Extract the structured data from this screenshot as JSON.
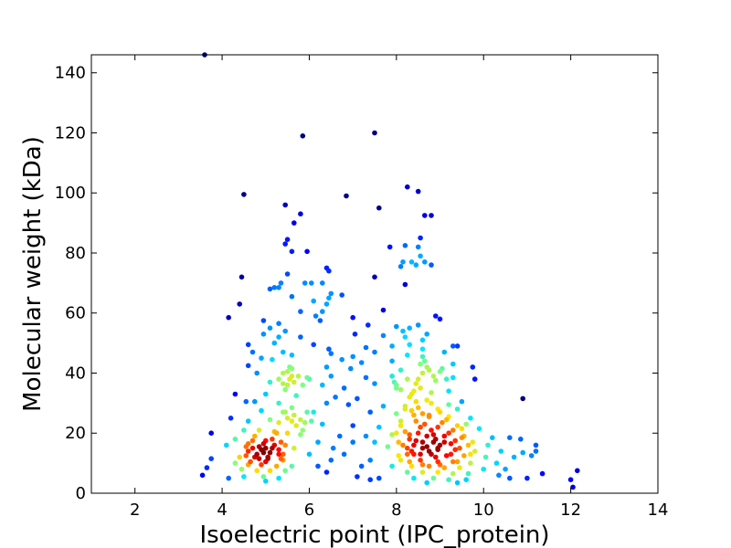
{
  "chart_data": {
    "type": "scatter",
    "title": "",
    "xlabel": "Isoelectric point (IPC_protein)",
    "ylabel": "Molecular weight (kDa)",
    "xlim": [
      1,
      14
    ],
    "ylim": [
      0,
      146
    ],
    "xticks": [
      2,
      4,
      6,
      8,
      10,
      12,
      14
    ],
    "yticks": [
      0,
      20,
      40,
      60,
      80,
      100,
      120,
      140
    ],
    "grid": false,
    "legend": "none",
    "color_by": "point density (jet colormap)",
    "colormap": [
      "#00007f",
      "#0000ff",
      "#0080ff",
      "#00e5ff",
      "#80ff80",
      "#ffe500",
      "#ff8000",
      "#ff0000",
      "#7f0000"
    ],
    "points": [
      [
        3.6,
        146
      ],
      [
        5.85,
        119
      ],
      [
        7.5,
        120
      ],
      [
        4.5,
        99.5
      ],
      [
        6.85,
        99
      ],
      [
        8.25,
        102
      ],
      [
        8.5,
        100.5
      ],
      [
        5.45,
        96
      ],
      [
        7.6,
        95
      ],
      [
        5.8,
        93
      ],
      [
        8.65,
        92.5
      ],
      [
        8.8,
        92.5
      ],
      [
        5.65,
        90
      ],
      [
        8.55,
        85
      ],
      [
        5.5,
        84.5
      ],
      [
        5.45,
        83
      ],
      [
        7.85,
        82
      ],
      [
        8.2,
        82.5
      ],
      [
        8.5,
        82
      ],
      [
        5.6,
        80.5
      ],
      [
        5.95,
        80.5
      ],
      [
        8.55,
        79
      ],
      [
        8.65,
        77
      ],
      [
        8.15,
        77
      ],
      [
        8.35,
        77
      ],
      [
        8.8,
        76
      ],
      [
        8.1,
        75.5
      ],
      [
        8.45,
        76
      ],
      [
        6.4,
        75
      ],
      [
        6.45,
        74
      ],
      [
        4.45,
        72
      ],
      [
        5.5,
        73
      ],
      [
        7.5,
        72
      ],
      [
        5.35,
        70
      ],
      [
        5.9,
        70
      ],
      [
        6.05,
        70
      ],
      [
        8.2,
        69.5
      ],
      [
        5.3,
        68.5
      ],
      [
        5.1,
        68
      ],
      [
        5.2,
        68.5
      ],
      [
        6.3,
        70
      ],
      [
        5.6,
        65.5
      ],
      [
        6.5,
        66.5
      ],
      [
        6.75,
        66
      ],
      [
        6.45,
        65
      ],
      [
        6.1,
        64
      ],
      [
        6.4,
        63
      ],
      [
        4.4,
        63
      ],
      [
        5.8,
        60.5
      ],
      [
        6.15,
        59
      ],
      [
        6.3,
        60.5
      ],
      [
        7.0,
        58.5
      ],
      [
        7.7,
        61
      ],
      [
        8.9,
        59
      ],
      [
        9.0,
        58
      ],
      [
        4.15,
        58.5
      ],
      [
        4.95,
        57.5
      ],
      [
        5.3,
        56.5
      ],
      [
        6.25,
        57.5
      ],
      [
        7.35,
        56
      ],
      [
        8.3,
        55
      ],
      [
        8.0,
        55.5
      ],
      [
        5.1,
        55
      ],
      [
        5.45,
        54
      ],
      [
        8.15,
        54
      ],
      [
        8.5,
        56
      ],
      [
        8.7,
        53
      ],
      [
        4.95,
        53
      ],
      [
        5.3,
        52
      ],
      [
        5.8,
        52
      ],
      [
        7.05,
        53
      ],
      [
        7.7,
        52.5
      ],
      [
        8.2,
        52
      ],
      [
        8.6,
        51
      ],
      [
        4.6,
        49.5
      ],
      [
        5.2,
        50
      ],
      [
        6.1,
        49.5
      ],
      [
        6.45,
        48
      ],
      [
        7.3,
        48.5
      ],
      [
        7.9,
        49
      ],
      [
        8.3,
        49.5
      ],
      [
        8.6,
        48
      ],
      [
        9.3,
        49
      ],
      [
        9.4,
        49
      ],
      [
        4.7,
        47
      ],
      [
        5.4,
        47
      ],
      [
        5.6,
        46
      ],
      [
        6.5,
        46.5
      ],
      [
        7.0,
        45.5
      ],
      [
        7.5,
        47
      ],
      [
        8.25,
        46
      ],
      [
        8.6,
        45.5
      ],
      [
        9.1,
        47
      ],
      [
        4.9,
        45
      ],
      [
        5.15,
        44.5
      ],
      [
        6.75,
        44.5
      ],
      [
        7.2,
        43.5
      ],
      [
        7.9,
        44
      ],
      [
        8.55,
        43
      ],
      [
        8.7,
        42
      ],
      [
        9.3,
        43
      ],
      [
        4.6,
        42.5
      ],
      [
        5.55,
        42
      ],
      [
        6.4,
        42
      ],
      [
        6.95,
        41.5
      ],
      [
        8.1,
        41
      ],
      [
        9.05,
        41.5
      ],
      [
        9.75,
        42
      ],
      [
        4.8,
        40
      ],
      [
        5.4,
        40
      ],
      [
        5.6,
        39
      ],
      [
        6.0,
        38
      ],
      [
        6.5,
        39
      ],
      [
        7.3,
        38.5
      ],
      [
        7.9,
        39
      ],
      [
        8.5,
        38
      ],
      [
        8.9,
        37.5
      ],
      [
        9.3,
        38.5
      ],
      [
        9.8,
        38
      ],
      [
        5.1,
        37
      ],
      [
        5.5,
        36
      ],
      [
        6.3,
        36
      ],
      [
        6.8,
        35
      ],
      [
        7.5,
        36.5
      ],
      [
        8.0,
        35
      ],
      [
        8.4,
        34
      ],
      [
        8.8,
        33.5
      ],
      [
        9.2,
        34
      ],
      [
        4.3,
        33
      ],
      [
        5.0,
        33
      ],
      [
        5.7,
        32.5
      ],
      [
        6.6,
        32
      ],
      [
        7.1,
        31.5
      ],
      [
        8.3,
        32
      ],
      [
        8.7,
        31
      ],
      [
        9.5,
        30.5
      ],
      [
        10.9,
        31.5
      ],
      [
        4.55,
        30.5
      ],
      [
        4.75,
        30.5
      ],
      [
        5.3,
        30
      ],
      [
        6.4,
        30
      ],
      [
        6.9,
        29.5
      ],
      [
        7.7,
        29
      ],
      [
        8.2,
        29
      ],
      [
        8.5,
        28.5
      ],
      [
        8.95,
        28
      ],
      [
        9.4,
        28
      ],
      [
        4.9,
        27.5
      ],
      [
        5.45,
        27
      ],
      [
        6.1,
        27
      ],
      [
        7.4,
        27
      ],
      [
        8.0,
        26.5
      ],
      [
        8.4,
        26
      ],
      [
        8.75,
        25.5
      ],
      [
        9.2,
        25.5
      ],
      [
        9.7,
        25
      ],
      [
        4.2,
        25
      ],
      [
        4.6,
        24
      ],
      [
        5.1,
        24.5
      ],
      [
        5.6,
        24
      ],
      [
        5.9,
        23.5
      ],
      [
        6.3,
        23
      ],
      [
        7.0,
        22.5
      ],
      [
        7.6,
        22
      ],
      [
        8.1,
        22.5
      ],
      [
        8.55,
        22
      ],
      [
        8.95,
        22
      ],
      [
        9.4,
        22.5
      ],
      [
        9.9,
        21.5
      ],
      [
        4.5,
        21
      ],
      [
        4.85,
        21
      ],
      [
        5.2,
        20.5
      ],
      [
        5.5,
        20
      ],
      [
        5.8,
        19.5
      ],
      [
        3.75,
        20
      ],
      [
        6.7,
        19
      ],
      [
        7.3,
        19
      ],
      [
        7.9,
        19.5
      ],
      [
        8.3,
        19.5
      ],
      [
        8.7,
        19
      ],
      [
        9.1,
        19
      ],
      [
        9.5,
        18.5
      ],
      [
        10.2,
        18.5
      ],
      [
        10.6,
        18.5
      ],
      [
        10.85,
        18
      ],
      [
        4.3,
        18
      ],
      [
        4.7,
        17.5
      ],
      [
        5.0,
        17.5
      ],
      [
        5.35,
        17
      ],
      [
        6.2,
        17
      ],
      [
        7.0,
        17
      ],
      [
        7.5,
        17
      ],
      [
        8.05,
        17
      ],
      [
        8.45,
        17.5
      ],
      [
        8.85,
        17
      ],
      [
        9.25,
        16.5
      ],
      [
        9.65,
        16
      ],
      [
        10.1,
        16
      ],
      [
        11.2,
        16
      ],
      [
        4.1,
        16
      ],
      [
        4.55,
        15.5
      ],
      [
        4.85,
        15.5
      ],
      [
        5.15,
        15
      ],
      [
        5.65,
        15
      ],
      [
        6.55,
        15
      ],
      [
        7.8,
        15.5
      ],
      [
        8.25,
        15
      ],
      [
        8.6,
        15
      ],
      [
        8.95,
        14.5
      ],
      [
        9.35,
        14.5
      ],
      [
        9.8,
        14
      ],
      [
        10.4,
        14
      ],
      [
        10.9,
        13.5
      ],
      [
        11.2,
        14
      ],
      [
        4.6,
        14
      ],
      [
        4.95,
        13.5
      ],
      [
        5.3,
        13
      ],
      [
        6.0,
        13
      ],
      [
        6.8,
        13
      ],
      [
        8.4,
        13
      ],
      [
        8.8,
        13
      ],
      [
        9.15,
        12.5
      ],
      [
        9.55,
        12.5
      ],
      [
        10.05,
        12
      ],
      [
        10.7,
        12
      ],
      [
        11.1,
        12.5
      ],
      [
        3.75,
        11.5
      ],
      [
        4.4,
        12
      ],
      [
        4.75,
        12
      ],
      [
        5.05,
        11.5
      ],
      [
        5.4,
        11
      ],
      [
        6.5,
        11
      ],
      [
        7.4,
        11
      ],
      [
        8.1,
        11
      ],
      [
        8.55,
        11
      ],
      [
        8.95,
        10.5
      ],
      [
        9.3,
        10.5
      ],
      [
        9.7,
        10
      ],
      [
        10.3,
        10
      ],
      [
        4.3,
        10
      ],
      [
        4.6,
        9.5
      ],
      [
        4.9,
        9.5
      ],
      [
        5.25,
        9
      ],
      [
        5.6,
        9
      ],
      [
        6.2,
        9
      ],
      [
        7.2,
        9
      ],
      [
        7.9,
        9
      ],
      [
        8.35,
        9
      ],
      [
        8.75,
        9
      ],
      [
        9.1,
        8.5
      ],
      [
        9.45,
        8.5
      ],
      [
        10.0,
        8
      ],
      [
        10.5,
        8
      ],
      [
        3.65,
        8.5
      ],
      [
        4.45,
        8
      ],
      [
        4.8,
        7.5
      ],
      [
        5.1,
        7.5
      ],
      [
        5.45,
        7.5
      ],
      [
        6.4,
        7
      ],
      [
        8.25,
        7
      ],
      [
        8.6,
        7
      ],
      [
        8.95,
        7
      ],
      [
        9.3,
        6.5
      ],
      [
        9.65,
        6.5
      ],
      [
        10.35,
        6
      ],
      [
        11.35,
        6.5
      ],
      [
        12.15,
        7.5
      ],
      [
        3.55,
        6
      ],
      [
        4.15,
        5
      ],
      [
        4.5,
        5.5
      ],
      [
        4.95,
        5.5
      ],
      [
        5.3,
        5
      ],
      [
        7.1,
        5.5
      ],
      [
        7.6,
        5
      ],
      [
        8.4,
        5
      ],
      [
        8.85,
        5
      ],
      [
        9.2,
        4.5
      ],
      [
        9.6,
        4.5
      ],
      [
        10.6,
        5
      ],
      [
        11.0,
        5
      ],
      [
        12.0,
        4.5
      ],
      [
        5.0,
        4
      ],
      [
        7.4,
        4.5
      ],
      [
        8.7,
        3.5
      ],
      [
        9.4,
        3.5
      ],
      [
        12.05,
        2
      ],
      [
        8.8,
        21
      ],
      [
        8.9,
        18
      ],
      [
        9.0,
        16
      ],
      [
        8.7,
        15.5
      ],
      [
        8.6,
        17
      ],
      [
        9.1,
        17
      ],
      [
        8.85,
        19.5
      ],
      [
        8.75,
        14
      ],
      [
        8.95,
        15
      ],
      [
        9.2,
        20
      ],
      [
        8.5,
        20
      ],
      [
        8.4,
        16
      ],
      [
        8.3,
        18
      ],
      [
        9.3,
        21
      ],
      [
        8.65,
        23
      ],
      [
        9.05,
        23.5
      ],
      [
        8.55,
        13
      ],
      [
        9.25,
        13
      ],
      [
        8.9,
        12
      ],
      [
        8.35,
        14
      ],
      [
        9.45,
        15
      ],
      [
        8.2,
        20.5
      ],
      [
        9.15,
        24.5
      ],
      [
        8.45,
        24
      ],
      [
        8.75,
        26
      ],
      [
        9.0,
        27
      ],
      [
        8.6,
        26.5
      ],
      [
        9.35,
        17.5
      ],
      [
        8.15,
        16
      ],
      [
        8.25,
        13
      ],
      [
        9.55,
        19
      ],
      [
        9.5,
        21.5
      ],
      [
        8.1,
        24
      ],
      [
        8.35,
        27.5
      ],
      [
        9.6,
        23
      ],
      [
        9.0,
        9.5
      ],
      [
        8.6,
        9.5
      ],
      [
        9.4,
        10.5
      ],
      [
        8.3,
        10.5
      ],
      [
        9.7,
        13
      ],
      [
        8.05,
        12.5
      ],
      [
        9.75,
        17
      ],
      [
        8.0,
        20
      ],
      [
        8.2,
        28
      ],
      [
        9.2,
        29.5
      ],
      [
        8.8,
        30
      ],
      [
        8.45,
        30.5
      ],
      [
        5.0,
        15
      ],
      [
        4.9,
        14.5
      ],
      [
        5.1,
        13.5
      ],
      [
        4.8,
        13
      ],
      [
        5.2,
        16
      ],
      [
        4.95,
        16.5
      ],
      [
        4.7,
        15
      ],
      [
        5.3,
        14.5
      ],
      [
        5.05,
        12
      ],
      [
        4.85,
        11.5
      ],
      [
        5.15,
        18
      ],
      [
        4.6,
        16.5
      ],
      [
        5.4,
        13
      ],
      [
        4.75,
        19
      ],
      [
        5.25,
        20
      ],
      [
        4.55,
        12.5
      ],
      [
        5.45,
        16
      ],
      [
        5.0,
        10.5
      ],
      [
        4.65,
        10.5
      ],
      [
        5.35,
        11.5
      ],
      [
        5.5,
        25
      ],
      [
        5.65,
        26
      ],
      [
        5.8,
        24.5
      ],
      [
        5.4,
        27
      ],
      [
        5.7,
        22.5
      ],
      [
        5.95,
        27
      ],
      [
        5.6,
        28.5
      ],
      [
        5.85,
        21
      ],
      [
        5.3,
        23.5
      ],
      [
        6.05,
        24
      ],
      [
        5.55,
        38
      ],
      [
        5.65,
        37
      ],
      [
        5.4,
        36.5
      ],
      [
        5.75,
        39
      ],
      [
        5.3,
        38
      ],
      [
        5.5,
        40.5
      ],
      [
        5.85,
        36
      ],
      [
        5.45,
        34.5
      ],
      [
        5.6,
        41.5
      ],
      [
        5.95,
        38.5
      ],
      [
        8.0,
        36
      ],
      [
        7.95,
        37
      ],
      [
        8.25,
        38
      ],
      [
        8.1,
        34.5
      ],
      [
        8.45,
        36.5
      ],
      [
        8.6,
        40
      ],
      [
        8.75,
        41
      ],
      [
        8.65,
        44
      ],
      [
        8.85,
        39
      ],
      [
        9.0,
        40.5
      ],
      [
        9.15,
        38
      ],
      [
        8.35,
        33
      ],
      [
        8.55,
        35
      ]
    ]
  }
}
